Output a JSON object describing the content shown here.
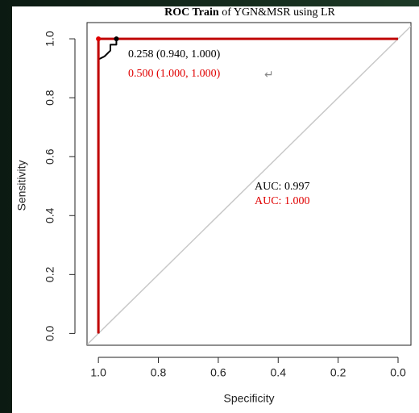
{
  "chart_data": {
    "type": "line",
    "title_bold": "ROC Train",
    "title_rest": "of YGN&MSR using LR",
    "xlabel": "Specificity",
    "ylabel": "Sensitivity",
    "xlim": [
      1.038,
      -0.043
    ],
    "ylim": [
      -0.04,
      1.055
    ],
    "xticks": [
      {
        "value": 1,
        "label": "1.0"
      },
      {
        "value": 0.8,
        "label": "0.8"
      },
      {
        "value": 0.6,
        "label": "0.6"
      },
      {
        "value": 0.4,
        "label": "0.4"
      },
      {
        "value": 0.2,
        "label": "0.2"
      },
      {
        "value": 0,
        "label": "0.0"
      }
    ],
    "yticks": [
      {
        "value": 0,
        "label": "0.0"
      },
      {
        "value": 0.2,
        "label": "0.2"
      },
      {
        "value": 0.4,
        "label": "0.4"
      },
      {
        "value": 0.6,
        "label": "0.6"
      },
      {
        "value": 0.8,
        "label": "0.8"
      },
      {
        "value": 1,
        "label": "1.0"
      }
    ],
    "series": [
      {
        "color": "#000000",
        "x": [
          1,
          1,
          0.98,
          0.96,
          0.96,
          0.94,
          0.94,
          0
        ],
        "values": [
          0,
          0.93,
          0.94,
          0.96,
          0.98,
          0.98,
          1,
          1
        ]
      },
      {
        "color": "#c00000",
        "x": [
          1,
          1,
          0
        ],
        "values": [
          0,
          1,
          1
        ]
      }
    ],
    "diagonal_color": "#c8c8c8",
    "thresholds": [
      {
        "label": "0.258 (0.940, 1.000)",
        "x": 0.94,
        "y": 1,
        "color": "#000000"
      },
      {
        "label": "0.500 (1.000, 1.000)",
        "x": 1,
        "y": 1,
        "color": "#e00000"
      }
    ],
    "return_mark": "↵",
    "auc_labels": [
      {
        "text": "AUC: 0.997",
        "color": "#000000"
      },
      {
        "text": "AUC: 1.000",
        "color": "#e00000"
      }
    ]
  }
}
